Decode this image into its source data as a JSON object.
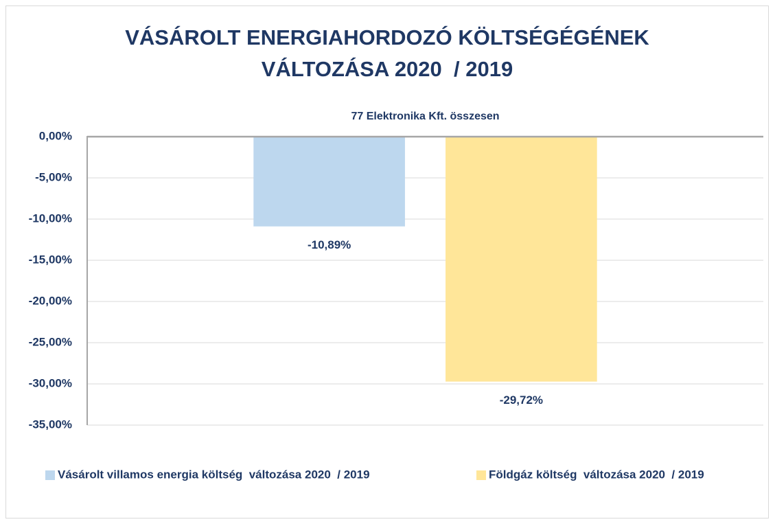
{
  "chart_data": {
    "type": "bar",
    "title": [
      "VÁSÁROLT ENERGIAHORDOZÓ KÖLTSÉGÉGÉNEK",
      "VÁLTOZÁSA 2020  / 2019"
    ],
    "categories": [
      "77 Elektronika Kft. összesen"
    ],
    "series": [
      {
        "name": "Vásárolt villamos energia költség  változása 2020  / 2019",
        "color": "#bdd7ee",
        "values": [
          -10.89
        ],
        "value_labels": [
          "-10,89%"
        ]
      },
      {
        "name": "Földgáz költség  változása 2020  / 2019",
        "color": "#ffe699",
        "values": [
          -29.72
        ],
        "value_labels": [
          "-29,72%"
        ]
      }
    ],
    "ylim": [
      -35,
      0
    ],
    "yticks": [
      {
        "value": 0,
        "label": "0,00%"
      },
      {
        "value": -5,
        "label": "-5,00%"
      },
      {
        "value": -10,
        "label": "-10,00%"
      },
      {
        "value": -15,
        "label": "-15,00%"
      },
      {
        "value": -20,
        "label": "-20,00%"
      },
      {
        "value": -25,
        "label": "-25,00%"
      },
      {
        "value": -30,
        "label": "-30,00%"
      },
      {
        "value": -35,
        "label": "-35,00%"
      }
    ],
    "grid": true,
    "legend": "bottom"
  }
}
